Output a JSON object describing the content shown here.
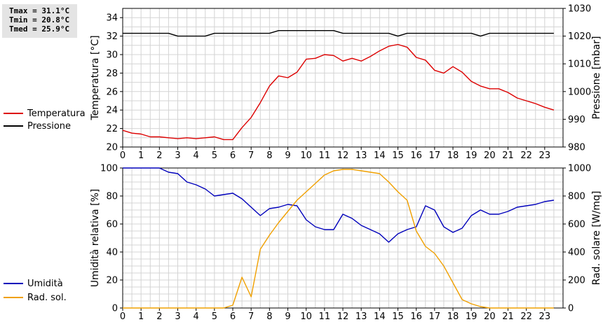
{
  "stats": {
    "tmax": "Tmax = 31.1°C",
    "tmin": "Tmin = 20.8°C",
    "tmed": "Tmed = 25.9°C"
  },
  "colors": {
    "temperature": "#dd0000",
    "pressure": "#000000",
    "humidity": "#0000bb",
    "radiation": "#f0a000",
    "grid": "#d4d4d4"
  },
  "legends": {
    "top": [
      {
        "label": "Temperatura",
        "color": "#dd0000"
      },
      {
        "label": "Pressione",
        "color": "#000000"
      }
    ],
    "bottom": [
      {
        "label": "Umidità",
        "color": "#0000bb"
      },
      {
        "label": "Rad. sol.",
        "color": "#f0a000"
      }
    ]
  },
  "chart_data": [
    {
      "type": "line",
      "xlim": [
        0,
        24
      ],
      "xticks": [
        "0",
        "1",
        "2",
        "3",
        "4",
        "5",
        "6",
        "7",
        "8",
        "9",
        "10",
        "11",
        "12",
        "13",
        "14",
        "15",
        "16",
        "17",
        "18",
        "19",
        "20",
        "21",
        "22",
        "23"
      ],
      "ylabel": "Temperatura [°C]",
      "ylim": [
        20,
        35
      ],
      "yticks": [
        "20",
        "22",
        "24",
        "26",
        "28",
        "30",
        "32",
        "34"
      ],
      "y2label": "Pressione [mbar]",
      "y2lim": [
        980,
        1030
      ],
      "y2ticks": [
        "980",
        "990",
        "1000",
        "1010",
        "1020",
        "1030"
      ],
      "grid": true,
      "legend": "left",
      "series": [
        {
          "name": "Temperatura",
          "axis": "left",
          "color": "#dd0000",
          "x": [
            0,
            0.5,
            1,
            1.5,
            2,
            2.5,
            3,
            3.5,
            4,
            4.5,
            5,
            5.5,
            6,
            6.5,
            7,
            7.5,
            8,
            8.5,
            9,
            9.5,
            10,
            10.5,
            11,
            11.5,
            12,
            12.5,
            13,
            13.5,
            14,
            14.5,
            15,
            15.5,
            16,
            16.5,
            17,
            17.5,
            18,
            18.5,
            19,
            19.5,
            20,
            20.5,
            21,
            21.5,
            22,
            22.5,
            23,
            23.5
          ],
          "y": [
            21.8,
            21.5,
            21.4,
            21.1,
            21.1,
            21.0,
            20.9,
            21.0,
            20.9,
            21.0,
            21.1,
            20.8,
            20.8,
            22.1,
            23.2,
            24.8,
            26.6,
            27.7,
            27.5,
            28.1,
            29.5,
            29.6,
            30.0,
            29.9,
            29.3,
            29.6,
            29.3,
            29.8,
            30.4,
            30.9,
            31.1,
            30.8,
            29.7,
            29.4,
            28.3,
            28.0,
            28.7,
            28.1,
            27.1,
            26.6,
            26.3,
            26.3,
            25.9,
            25.3,
            25.0,
            24.7,
            24.3,
            24.0
          ]
        },
        {
          "name": "Pressione",
          "axis": "right",
          "color": "#000000",
          "x": [
            0,
            0.5,
            1,
            1.5,
            2,
            2.5,
            3,
            3.5,
            4,
            4.5,
            5,
            5.5,
            6,
            6.5,
            7,
            7.5,
            8,
            8.5,
            9,
            9.5,
            10,
            10.5,
            11,
            11.5,
            12,
            12.5,
            13,
            13.5,
            14,
            14.5,
            15,
            15.5,
            16,
            16.5,
            17,
            17.5,
            18,
            18.5,
            19,
            19.5,
            20,
            20.5,
            21,
            21.5,
            22,
            22.5,
            23,
            23.5
          ],
          "y": [
            1021,
            1021,
            1021,
            1021,
            1021,
            1021,
            1020,
            1020,
            1020,
            1020,
            1021,
            1021,
            1021,
            1021,
            1021,
            1021,
            1021,
            1022,
            1022,
            1022,
            1022,
            1022,
            1022,
            1022,
            1021,
            1021,
            1021,
            1021,
            1021,
            1021,
            1020,
            1021,
            1021,
            1021,
            1021,
            1021,
            1021,
            1021,
            1021,
            1020,
            1021,
            1021,
            1021,
            1021,
            1021,
            1021,
            1021,
            1021
          ]
        }
      ]
    },
    {
      "type": "line",
      "xlim": [
        0,
        24
      ],
      "xticks": [
        "0",
        "1",
        "2",
        "3",
        "4",
        "5",
        "6",
        "7",
        "8",
        "9",
        "10",
        "11",
        "12",
        "13",
        "14",
        "15",
        "16",
        "17",
        "18",
        "19",
        "20",
        "21",
        "22",
        "23"
      ],
      "ylabel": "Umidità relativa [%]",
      "ylim": [
        0,
        100
      ],
      "yticks": [
        "0",
        "20",
        "40",
        "60",
        "80",
        "100"
      ],
      "y2label": "Rad. solare [W/mq]",
      "y2lim": [
        0,
        1000
      ],
      "y2ticks": [
        "0",
        "200",
        "400",
        "600",
        "800",
        "1000"
      ],
      "grid": true,
      "legend": "left",
      "series": [
        {
          "name": "Umidità",
          "axis": "left",
          "color": "#0000bb",
          "x": [
            0,
            0.5,
            1,
            1.5,
            2,
            2.5,
            3,
            3.5,
            4,
            4.5,
            5,
            5.5,
            6,
            6.5,
            7,
            7.5,
            8,
            8.5,
            9,
            9.5,
            10,
            10.5,
            11,
            11.5,
            12,
            12.5,
            13,
            13.5,
            14,
            14.5,
            15,
            15.5,
            16,
            16.5,
            17,
            17.5,
            18,
            18.5,
            19,
            19.5,
            20,
            20.5,
            21,
            21.5,
            22,
            22.5,
            23,
            23.5
          ],
          "y": [
            100,
            100,
            100,
            100,
            100,
            97,
            96,
            90,
            88,
            85,
            80,
            81,
            82,
            78,
            72,
            66,
            71,
            72,
            74,
            73,
            63,
            58,
            56,
            56,
            67,
            64,
            59,
            56,
            53,
            47,
            53,
            56,
            58,
            73,
            70,
            58,
            54,
            57,
            66,
            70,
            67,
            67,
            69,
            72,
            73,
            74,
            76,
            77
          ]
        },
        {
          "name": "Rad. sol.",
          "axis": "right",
          "color": "#f0a000",
          "x": [
            0,
            0.5,
            1,
            1.5,
            2,
            2.5,
            3,
            3.5,
            4,
            4.5,
            5,
            5.5,
            6,
            6.5,
            7,
            7.5,
            8,
            8.5,
            9,
            9.5,
            10,
            10.5,
            11,
            11.5,
            12,
            12.5,
            13,
            13.5,
            14,
            14.5,
            15,
            15.5,
            16,
            16.5,
            17,
            17.5,
            18,
            18.5,
            19,
            19.5,
            20,
            20.5,
            21,
            21.5,
            22,
            22.5,
            23,
            23.5
          ],
          "y": [
            0,
            0,
            0,
            0,
            0,
            0,
            0,
            0,
            0,
            0,
            0,
            0,
            20,
            220,
            80,
            420,
            520,
            610,
            690,
            770,
            830,
            890,
            950,
            980,
            990,
            990,
            980,
            970,
            960,
            900,
            830,
            770,
            550,
            440,
            390,
            300,
            180,
            60,
            30,
            10,
            0,
            0,
            0,
            0,
            0,
            0,
            0,
            0
          ]
        }
      ]
    }
  ]
}
